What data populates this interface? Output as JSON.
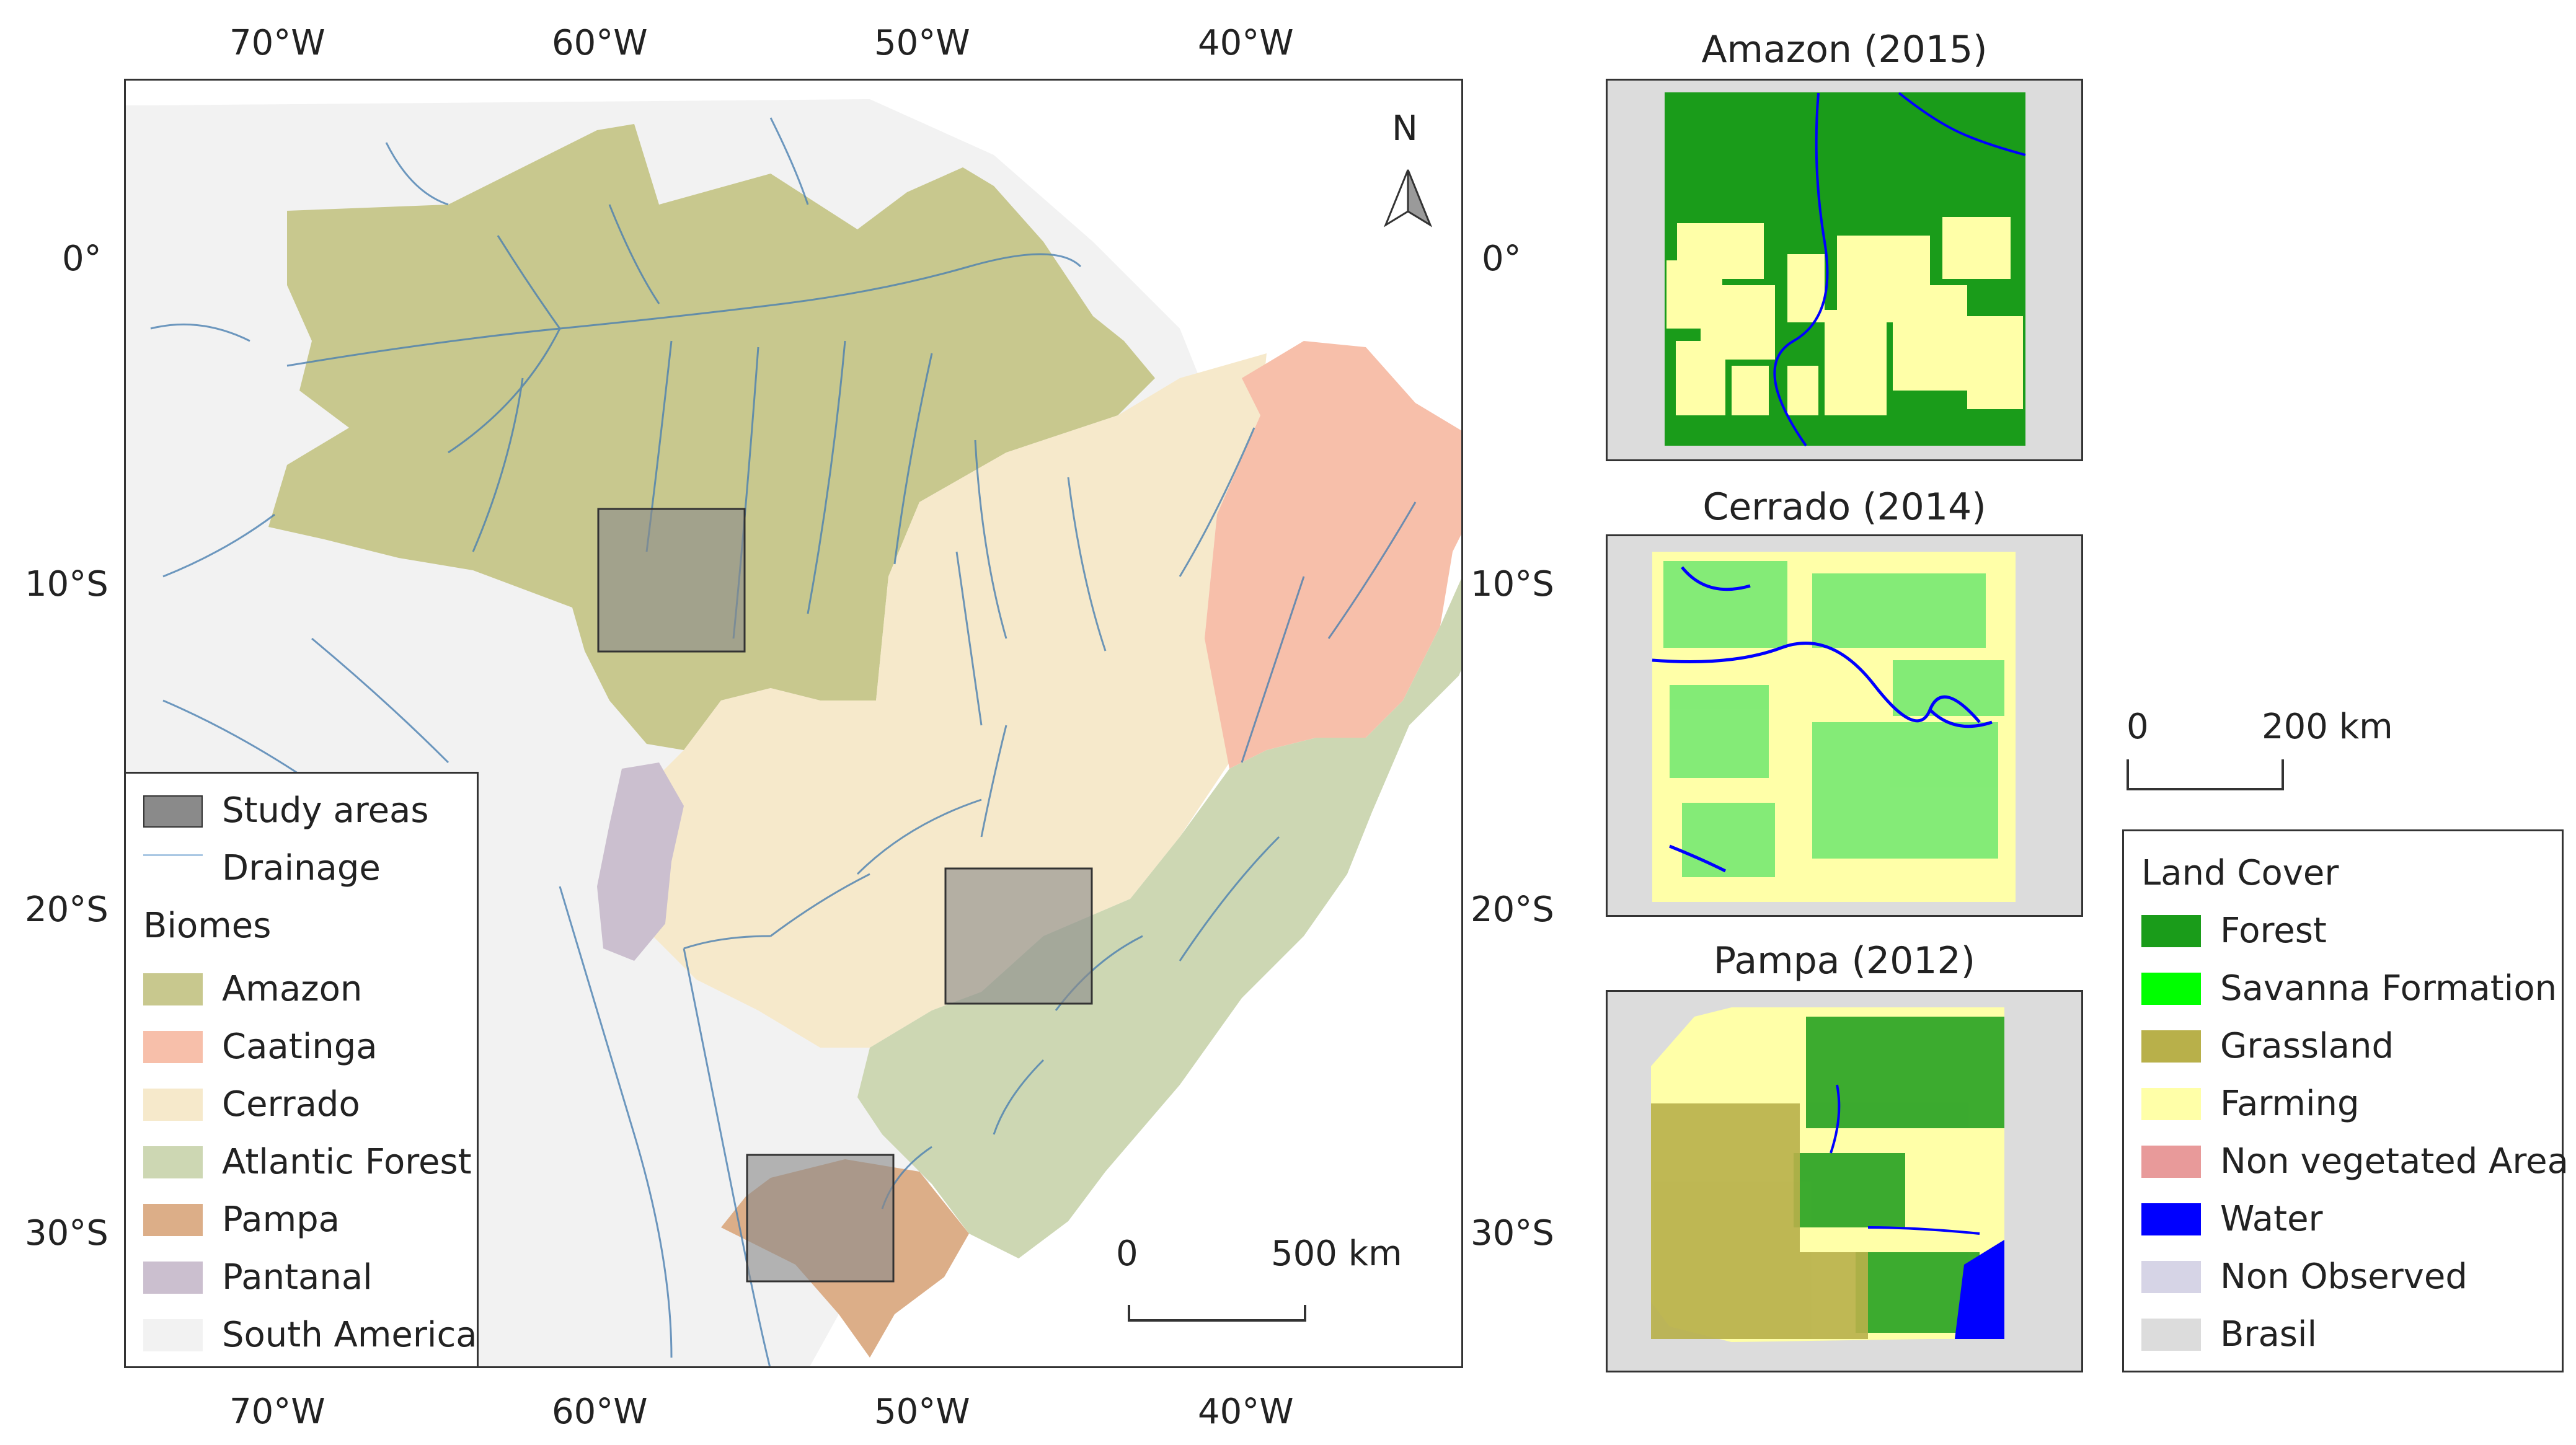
{
  "main_map": {
    "lon_labels_top": [
      "70°W",
      "60°W",
      "50°W",
      "40°W"
    ],
    "lon_labels_bottom": [
      "70°W",
      "60°W",
      "50°W",
      "40°W"
    ],
    "lat_labels_left": [
      "0°",
      "10°S",
      "20°S",
      "30°S"
    ],
    "lat_labels_right": [
      "0°",
      "10°S",
      "20°S",
      "30°S"
    ],
    "north_arrow": "N",
    "scale_bar": {
      "start": "0",
      "end": "500 km"
    },
    "legend": {
      "study_areas": "Study areas",
      "drainage": "Drainage",
      "biomes_heading": "Biomes",
      "biomes": [
        {
          "name": "Amazon",
          "color": "#c8c88e"
        },
        {
          "name": "Caatinga",
          "color": "#f7bfaa"
        },
        {
          "name": "Cerrado",
          "color": "#f6e9cb"
        },
        {
          "name": "Atlantic Forest",
          "color": "#cdd7b3"
        },
        {
          "name": "Pampa",
          "color": "#dcae88"
        },
        {
          "name": "Pantanal",
          "color": "#cbbfcf"
        },
        {
          "name": "South America",
          "color": "#f2f2f2"
        }
      ]
    }
  },
  "insets": [
    {
      "title": "Amazon (2015)"
    },
    {
      "title": "Cerrado (2014)"
    },
    {
      "title": "Pampa (2012)"
    }
  ],
  "inset_scale_bar": {
    "start": "0",
    "end": "200 km"
  },
  "land_cover_legend": {
    "heading": "Land Cover",
    "items": [
      {
        "name": "Forest",
        "color": "#1a9c1a"
      },
      {
        "name": "Savanna Formation",
        "color": "#00ff00"
      },
      {
        "name": "Grassland",
        "color": "#b8b04a"
      },
      {
        "name": "Farming",
        "color": "#ffffa8"
      },
      {
        "name": "Non vegetated Area",
        "color": "#e89a9a"
      },
      {
        "name": "Water",
        "color": "#0000ff"
      },
      {
        "name": "Non Observed",
        "color": "#d6d4e6"
      },
      {
        "name": "Brasil",
        "color": "#dcdcdc"
      }
    ]
  }
}
